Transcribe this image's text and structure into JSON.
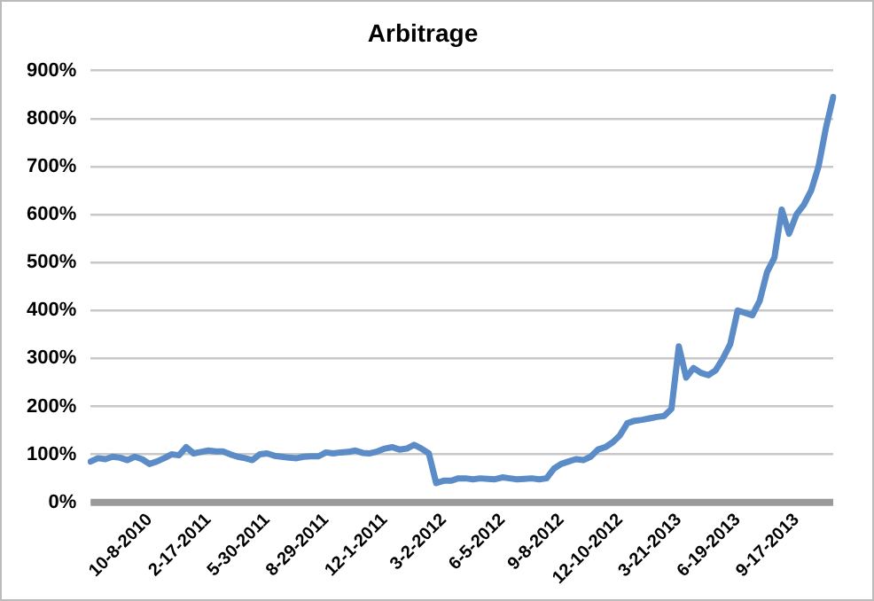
{
  "chart_data": {
    "type": "line",
    "title": "Arbitrage",
    "categories": [
      null,
      null,
      null,
      null,
      null,
      null,
      null,
      null,
      "10-8-2010",
      null,
      null,
      null,
      null,
      null,
      null,
      null,
      "2-17-2011",
      null,
      null,
      null,
      null,
      null,
      null,
      null,
      "5-30-2011",
      null,
      null,
      null,
      null,
      null,
      null,
      null,
      "8-29-2011",
      null,
      null,
      null,
      null,
      null,
      null,
      null,
      "12-1-2011",
      null,
      null,
      null,
      null,
      null,
      null,
      null,
      "3-2-2012",
      null,
      null,
      null,
      null,
      null,
      null,
      null,
      "6-5-2012",
      null,
      null,
      null,
      null,
      null,
      null,
      null,
      "9-8-2012",
      null,
      null,
      null,
      null,
      null,
      null,
      null,
      "12-10-2012",
      null,
      null,
      null,
      null,
      null,
      null,
      null,
      "3-21-2013",
      null,
      null,
      null,
      null,
      null,
      null,
      null,
      "6-19-2013",
      null,
      null,
      null,
      null,
      null,
      null,
      null,
      "9-17-2013",
      null,
      null,
      null,
      null,
      null
    ],
    "series": [
      {
        "color": "#5b8cc8",
        "values": [
          85,
          92,
          90,
          95,
          93,
          88,
          95,
          90,
          80,
          85,
          92,
          100,
          98,
          115,
          102,
          105,
          108,
          106,
          106,
          100,
          95,
          92,
          88,
          100,
          102,
          97,
          95,
          93,
          92,
          95,
          96,
          96,
          104,
          102,
          104,
          105,
          108,
          103,
          102,
          106,
          112,
          115,
          110,
          112,
          120,
          112,
          102,
          40,
          45,
          45,
          50,
          50,
          48,
          50,
          49,
          48,
          52,
          50,
          48,
          49,
          50,
          48,
          50,
          70,
          80,
          85,
          90,
          88,
          95,
          110,
          115,
          125,
          140,
          165,
          170,
          172,
          175,
          178,
          180,
          195,
          325,
          260,
          280,
          270,
          265,
          275,
          300,
          330,
          400,
          395,
          390,
          420,
          480,
          510,
          610,
          560,
          600,
          620,
          650,
          700,
          780,
          845
        ]
      }
    ],
    "ylim": [
      0,
      900
    ],
    "yticks": [
      {
        "value": 0,
        "label": "0%"
      },
      {
        "value": 100,
        "label": "100%"
      },
      {
        "value": 200,
        "label": "200%"
      },
      {
        "value": 300,
        "label": "300%"
      },
      {
        "value": 400,
        "label": "400%"
      },
      {
        "value": 500,
        "label": "500%"
      },
      {
        "value": 600,
        "label": "600%"
      },
      {
        "value": 700,
        "label": "700%"
      },
      {
        "value": 800,
        "label": "800%"
      },
      {
        "value": 900,
        "label": "900%"
      }
    ],
    "grid": "y",
    "legend": false,
    "marker": "none",
    "line_style": "solid"
  }
}
